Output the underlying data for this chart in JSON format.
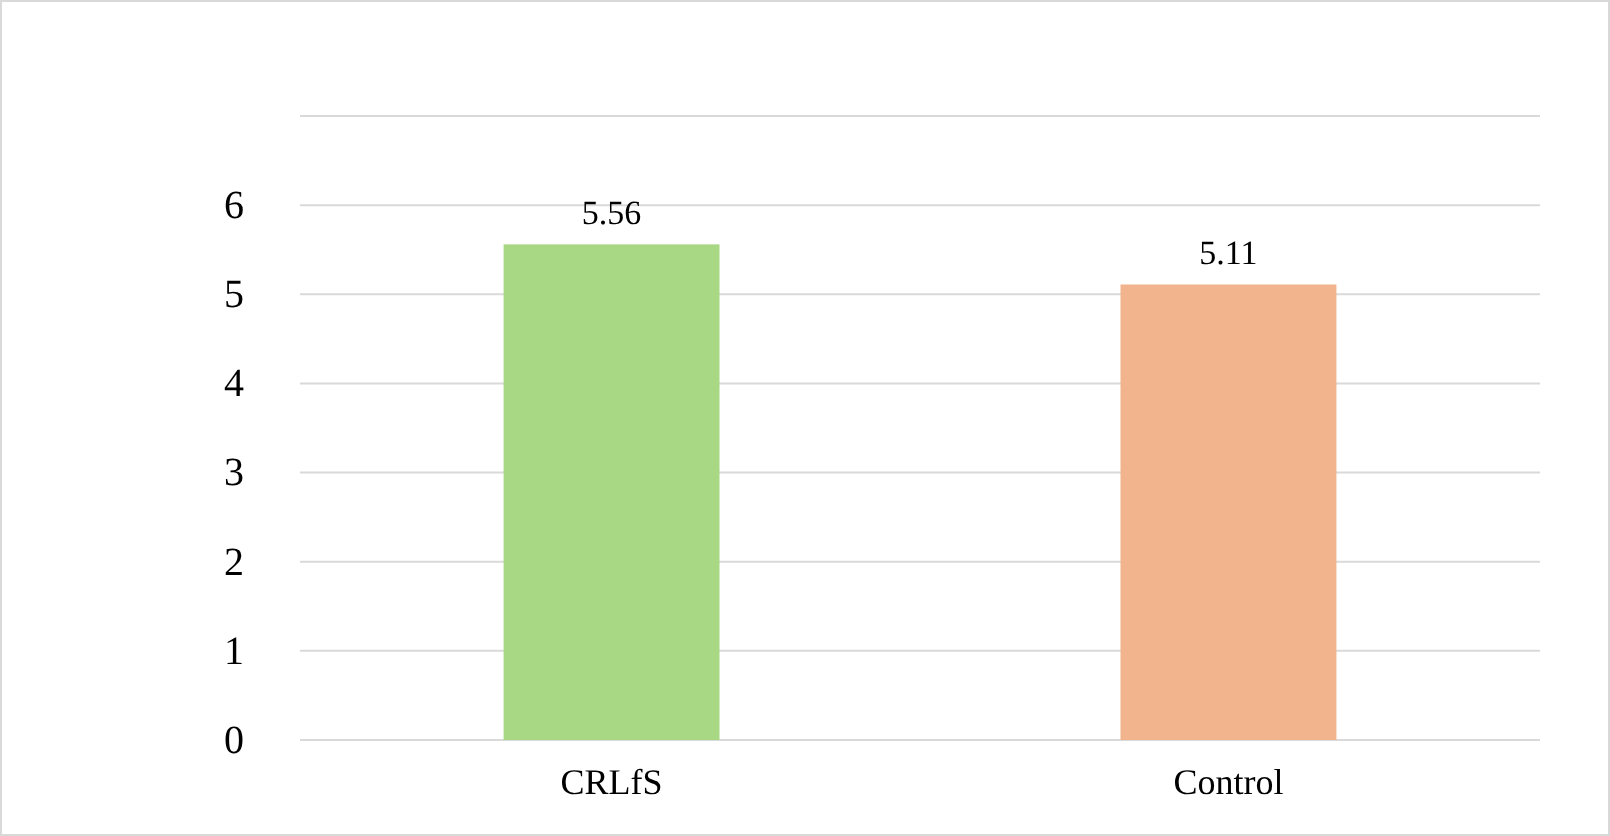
{
  "chart_data": {
    "type": "bar",
    "categories": [
      "CRLfS",
      "Control"
    ],
    "values": [
      5.56,
      5.11
    ],
    "colors": [
      "#a9d884",
      "#f2b48c"
    ],
    "ylim": [
      0,
      7
    ],
    "yticks": [
      0,
      1,
      2,
      3,
      4,
      5,
      6,
      {
        "value": 7,
        "label": null
      }
    ],
    "grid": "y",
    "data_labels": true
  }
}
